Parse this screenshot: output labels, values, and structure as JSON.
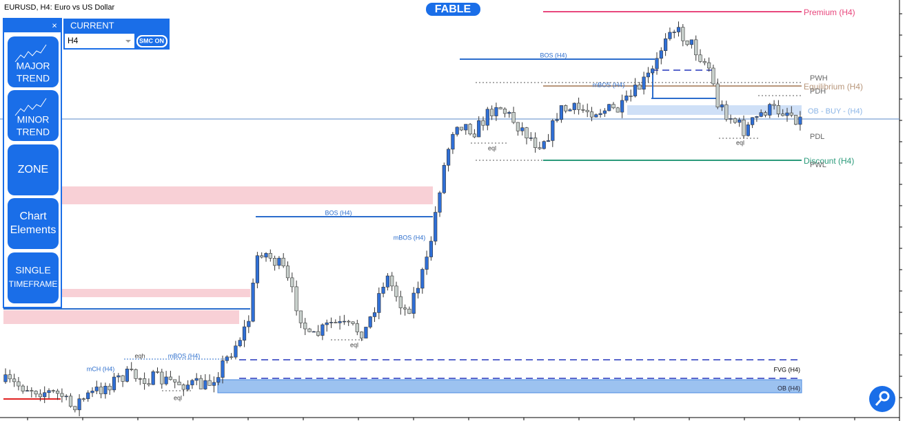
{
  "header": {
    "symbol": "EURUSD, H4:  Euro vs US Dollar",
    "badge": "FABLE"
  },
  "panel": {
    "close": "×",
    "current": "CURRENT",
    "timeframe": "H4",
    "smc": "SMC ON",
    "buttons": [
      [
        "MAJOR",
        "TREND"
      ],
      [
        "MINOR",
        "TREND"
      ],
      [
        "ZONE"
      ],
      [
        "Chart",
        "Elements"
      ],
      [
        "SINGLE",
        "TIMEFRAME"
      ]
    ]
  },
  "annotations": [
    "BOS (H4)",
    "BOS (H4)",
    "mBOS (H4)",
    "mBOS (H4)",
    "mBOS (H4)",
    "mCH (H4)",
    "eqh",
    "eql",
    "eql",
    "eql",
    "eql",
    "Premium (H4)",
    "Equilibrium (H4)",
    "Discount (H4)",
    "OB - BUY -  (H4)",
    "PWH",
    "PDH",
    "PDL",
    "PWL",
    "FVG (H4)",
    "OB (H4)"
  ]
}
